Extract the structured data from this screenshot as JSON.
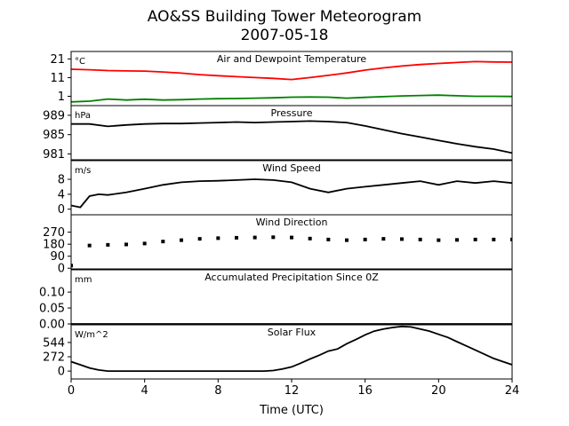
{
  "figure": {
    "title_line1": "AO&SS Building Tower Meteorogram",
    "title_line2": "2007-05-18",
    "xlabel": "Time (UTC)",
    "x_ticks": [
      "0",
      "4",
      "8",
      "12",
      "16",
      "20",
      "24"
    ]
  },
  "chart_data": [
    {
      "type": "line",
      "title": "Air and Dewpoint Temperature",
      "unit": "°C",
      "xlim": [
        0,
        24
      ],
      "ylim": [
        -4,
        25
      ],
      "yticks": [
        21,
        11,
        1
      ],
      "ytick_labels": [
        "21",
        "11",
        "1"
      ],
      "series": [
        {
          "color": "#ff0000",
          "x": [
            0,
            1,
            2,
            3,
            4,
            5,
            6,
            7,
            8,
            9,
            10,
            11,
            12,
            13,
            14,
            15,
            16,
            17,
            18,
            19,
            20,
            21,
            22,
            23,
            24
          ],
          "y": [
            15.5,
            15.2,
            14.8,
            14.6,
            14.5,
            14.0,
            13.4,
            12.6,
            12.0,
            11.5,
            11.0,
            10.6,
            10.0,
            11.0,
            12.2,
            13.5,
            15.0,
            16.2,
            17.2,
            18.0,
            18.6,
            19.1,
            19.6,
            19.4,
            19.3
          ]
        },
        {
          "color": "#008000",
          "x": [
            0,
            1,
            2,
            3,
            4,
            5,
            6,
            7,
            8,
            9,
            10,
            11,
            12,
            13,
            14,
            15,
            16,
            17,
            18,
            19,
            20,
            21,
            22,
            23,
            24
          ],
          "y": [
            -2.0,
            -1.6,
            -0.5,
            -1.0,
            -0.6,
            -1.0,
            -0.8,
            -0.5,
            -0.3,
            -0.2,
            0.0,
            0.2,
            0.5,
            0.6,
            0.5,
            0.0,
            0.4,
            0.8,
            1.2,
            1.4,
            1.6,
            1.3,
            1.0,
            1.0,
            0.9
          ]
        }
      ]
    },
    {
      "type": "line",
      "title": "Pressure",
      "unit": "hPa",
      "xlim": [
        0,
        24
      ],
      "ylim": [
        979.8,
        991.0
      ],
      "yticks": [
        989,
        985,
        981
      ],
      "ytick_labels": [
        "989",
        "985",
        "981"
      ],
      "series": [
        {
          "color": "#000000",
          "x": [
            0,
            1,
            2,
            3,
            4,
            5,
            6,
            7,
            8,
            9,
            10,
            11,
            12,
            13,
            14,
            15,
            16,
            17,
            18,
            19,
            20,
            21,
            22,
            23,
            24
          ],
          "y": [
            987.2,
            987.2,
            986.7,
            987.0,
            987.2,
            987.3,
            987.3,
            987.4,
            987.5,
            987.6,
            987.5,
            987.6,
            987.7,
            987.8,
            987.7,
            987.5,
            986.8,
            986.0,
            985.2,
            984.5,
            983.8,
            983.1,
            982.5,
            982.0,
            981.2
          ]
        }
      ]
    },
    {
      "type": "line",
      "title": "Wind Speed",
      "unit": "m/s",
      "xlim": [
        0,
        24
      ],
      "ylim": [
        -1.5,
        13
      ],
      "yticks": [
        8,
        4,
        0
      ],
      "ytick_labels": [
        "8",
        "4",
        "0"
      ],
      "series": [
        {
          "color": "#000000",
          "x": [
            0,
            0.5,
            1,
            1.5,
            2,
            3,
            4,
            5,
            6,
            7,
            8,
            9,
            10,
            11,
            12,
            13,
            14,
            15,
            16,
            17,
            18,
            19,
            20,
            21,
            22,
            23,
            24
          ],
          "y": [
            1.0,
            0.5,
            3.5,
            4.0,
            3.8,
            4.5,
            5.5,
            6.5,
            7.2,
            7.5,
            7.6,
            7.8,
            8.0,
            7.8,
            7.2,
            5.5,
            4.5,
            5.5,
            6.0,
            6.5,
            7.0,
            7.5,
            6.5,
            7.5,
            7.0,
            7.5,
            7.0
          ]
        }
      ]
    },
    {
      "type": "scatter",
      "title": "Wind Direction",
      "unit": "",
      "xlim": [
        0,
        24
      ],
      "ylim": [
        -5,
        400
      ],
      "yticks": [
        270,
        180,
        90,
        0
      ],
      "ytick_labels": [
        "270",
        "180",
        "90",
        "0"
      ],
      "series": [
        {
          "color": "#000000",
          "x": [
            0,
            1,
            2,
            3,
            4,
            5,
            6,
            7,
            8,
            9,
            10,
            11,
            12,
            13,
            14,
            15,
            16,
            17,
            18,
            19,
            20,
            21,
            22,
            23,
            24
          ],
          "y": [
            20,
            170,
            175,
            178,
            185,
            200,
            210,
            220,
            225,
            228,
            230,
            232,
            230,
            222,
            215,
            210,
            215,
            220,
            218,
            215,
            210,
            212,
            215,
            215,
            215
          ]
        }
      ]
    },
    {
      "type": "line",
      "title": "Accumulated Precipitation Since 0Z",
      "unit": "mm",
      "xlim": [
        0,
        24
      ],
      "ylim": [
        0,
        0.17
      ],
      "yticks": [
        0.1,
        0.05,
        0.0
      ],
      "ytick_labels": [
        "0.10",
        "0.05",
        "0.00"
      ],
      "series": [
        {
          "color": "#000000",
          "x": [
            0,
            24
          ],
          "y": [
            0,
            0
          ]
        }
      ]
    },
    {
      "type": "line",
      "title": "Solar Flux",
      "unit": "W/m^2",
      "xlim": [
        0,
        24
      ],
      "ylim": [
        -150,
        880
      ],
      "yticks": [
        544,
        272,
        0
      ],
      "ytick_labels": [
        "544",
        "272",
        "0"
      ],
      "series": [
        {
          "color": "#000000",
          "x": [
            0,
            0.5,
            1,
            1.5,
            2,
            3,
            4,
            5,
            6,
            7,
            8,
            9,
            10,
            10.5,
            11,
            11.5,
            12,
            12.5,
            13,
            13.5,
            14,
            14.5,
            15,
            15.5,
            16,
            16.5,
            17,
            17.5,
            18,
            18.5,
            19,
            19.5,
            20,
            20.5,
            21,
            21.5,
            22,
            22.5,
            23,
            23.5,
            24
          ],
          "y": [
            180,
            120,
            60,
            20,
            0,
            0,
            0,
            0,
            0,
            0,
            0,
            0,
            0,
            0,
            10,
            40,
            80,
            150,
            230,
            300,
            380,
            420,
            520,
            600,
            690,
            760,
            800,
            830,
            850,
            840,
            800,
            760,
            700,
            640,
            560,
            480,
            400,
            320,
            240,
            180,
            120
          ]
        }
      ]
    }
  ]
}
